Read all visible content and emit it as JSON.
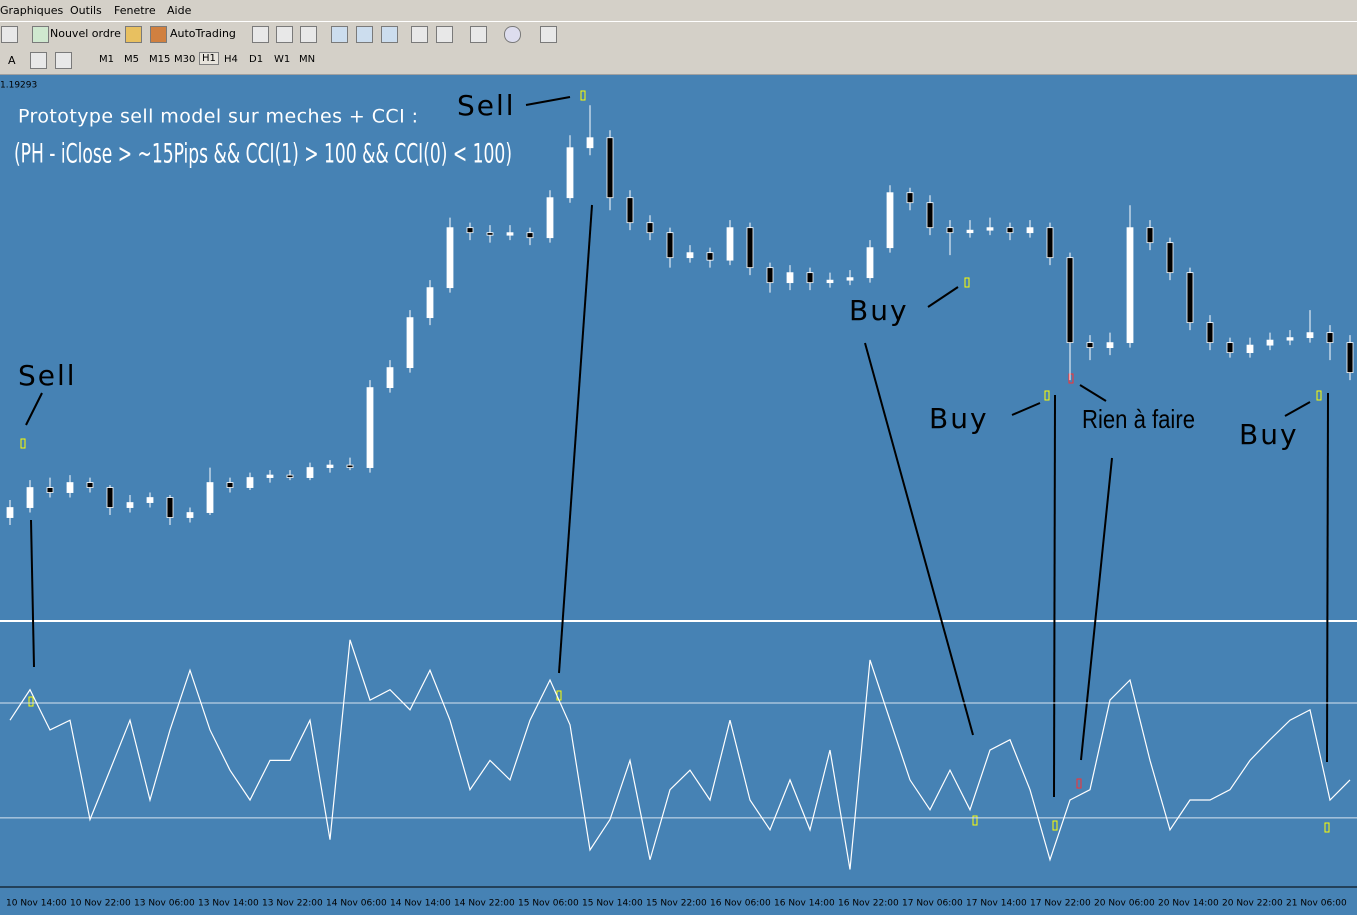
{
  "menu": [
    "Graphiques",
    "Outils",
    "Fenetre",
    "Aide"
  ],
  "toolbar": {
    "new_order": "Nouvel ordre",
    "autotrading": "AutoTrading",
    "timeframes": [
      "M1",
      "M5",
      "M15",
      "M30",
      "H1",
      "H4",
      "D1",
      "W1",
      "MN"
    ],
    "active_timeframe": "H1"
  },
  "price_label": "1.19293",
  "chart_data": {
    "type": "candlestick",
    "title": "Prototype sell model sur meches + CCI :",
    "subtitle": "(PH - iClose > ~15Pips && CCI(1) > 100 && CCI(0) < 100)",
    "annotations": [
      "Sell",
      "Sell",
      "Buy",
      "Buy",
      "Rien à faire",
      "Buy"
    ],
    "ylim": [
      1.1714,
      1.19293
    ],
    "candles": [
      [
        1.1755,
        1.1762,
        1.1752,
        1.1759
      ],
      [
        1.1759,
        1.177,
        1.1757,
        1.1767
      ],
      [
        1.1767,
        1.1771,
        1.1763,
        1.1765
      ],
      [
        1.1765,
        1.1772,
        1.1763,
        1.1769
      ],
      [
        1.1769,
        1.1771,
        1.1765,
        1.1767
      ],
      [
        1.1767,
        1.1768,
        1.1756,
        1.1759
      ],
      [
        1.1759,
        1.1764,
        1.1757,
        1.1761
      ],
      [
        1.1761,
        1.1765,
        1.1759,
        1.1763
      ],
      [
        1.1763,
        1.1764,
        1.1752,
        1.1755
      ],
      [
        1.1755,
        1.1759,
        1.1753,
        1.1757
      ],
      [
        1.1757,
        1.1775,
        1.1756,
        1.1769
      ],
      [
        1.1769,
        1.1771,
        1.1765,
        1.1767
      ],
      [
        1.1767,
        1.1773,
        1.1766,
        1.1771
      ],
      [
        1.1771,
        1.1774,
        1.1769,
        1.1772
      ],
      [
        1.1772,
        1.1774,
        1.177,
        1.1771
      ],
      [
        1.1771,
        1.1777,
        1.177,
        1.1775
      ],
      [
        1.1775,
        1.1778,
        1.1773,
        1.1776
      ],
      [
        1.1776,
        1.1779,
        1.1774,
        1.1775
      ],
      [
        1.1775,
        1.181,
        1.1773,
        1.1807
      ],
      [
        1.1807,
        1.1818,
        1.1805,
        1.1815
      ],
      [
        1.1815,
        1.1838,
        1.1813,
        1.1835
      ],
      [
        1.1835,
        1.185,
        1.1832,
        1.1847
      ],
      [
        1.1847,
        1.1875,
        1.1845,
        1.1871
      ],
      [
        1.1871,
        1.1873,
        1.1866,
        1.1869
      ],
      [
        1.1869,
        1.1872,
        1.1865,
        1.1868
      ],
      [
        1.1868,
        1.1872,
        1.1866,
        1.1869
      ],
      [
        1.1869,
        1.1871,
        1.1864,
        1.1867
      ],
      [
        1.1867,
        1.1886,
        1.1865,
        1.1883
      ],
      [
        1.1883,
        1.1908,
        1.1881,
        1.1903
      ],
      [
        1.1903,
        1.192,
        1.19,
        1.1907
      ],
      [
        1.1907,
        1.191,
        1.1878,
        1.1883
      ],
      [
        1.1883,
        1.1886,
        1.187,
        1.1873
      ],
      [
        1.1873,
        1.1876,
        1.1866,
        1.1869
      ],
      [
        1.1869,
        1.1871,
        1.1855,
        1.1859
      ],
      [
        1.1859,
        1.1864,
        1.1857,
        1.1861
      ],
      [
        1.1861,
        1.1863,
        1.1855,
        1.1858
      ],
      [
        1.1858,
        1.1874,
        1.1856,
        1.1871
      ],
      [
        1.1871,
        1.1873,
        1.1852,
        1.1855
      ],
      [
        1.1855,
        1.1857,
        1.1845,
        1.1849
      ],
      [
        1.1849,
        1.1856,
        1.1846,
        1.1853
      ],
      [
        1.1853,
        1.1855,
        1.1846,
        1.1849
      ],
      [
        1.1849,
        1.1853,
        1.1847,
        1.185
      ],
      [
        1.185,
        1.1854,
        1.1848,
        1.1851
      ],
      [
        1.1851,
        1.1866,
        1.1849,
        1.1863
      ],
      [
        1.1863,
        1.1888,
        1.1861,
        1.1885
      ],
      [
        1.1885,
        1.1887,
        1.1878,
        1.1881
      ],
      [
        1.1881,
        1.1884,
        1.1868,
        1.1871
      ],
      [
        1.1871,
        1.1874,
        1.186,
        1.1869
      ],
      [
        1.1869,
        1.1874,
        1.1867,
        1.187
      ],
      [
        1.187,
        1.1875,
        1.1868,
        1.1871
      ],
      [
        1.1871,
        1.1873,
        1.1866,
        1.1869
      ],
      [
        1.1869,
        1.1874,
        1.1867,
        1.1871
      ],
      [
        1.1871,
        1.1873,
        1.1856,
        1.1859
      ],
      [
        1.1859,
        1.1861,
        1.181,
        1.1825
      ],
      [
        1.1825,
        1.1828,
        1.1818,
        1.1823
      ],
      [
        1.1823,
        1.1829,
        1.182,
        1.1825
      ],
      [
        1.1825,
        1.188,
        1.1823,
        1.1871
      ],
      [
        1.1871,
        1.1874,
        1.1862,
        1.1865
      ],
      [
        1.1865,
        1.1867,
        1.185,
        1.1853
      ],
      [
        1.1853,
        1.1855,
        1.183,
        1.1833
      ],
      [
        1.1833,
        1.1836,
        1.1822,
        1.1825
      ],
      [
        1.1825,
        1.1827,
        1.1819,
        1.1821
      ],
      [
        1.1821,
        1.1827,
        1.1819,
        1.1824
      ],
      [
        1.1824,
        1.1829,
        1.1822,
        1.1826
      ],
      [
        1.1826,
        1.183,
        1.1824,
        1.1827
      ],
      [
        1.1827,
        1.1838,
        1.1825,
        1.1829
      ],
      [
        1.1829,
        1.1832,
        1.1818,
        1.1825
      ],
      [
        1.1825,
        1.1828,
        1.181,
        1.1813
      ]
    ],
    "cci": {
      "ylim": [
        -217,
        241
      ],
      "levels": [
        100,
        -100
      ],
      "color": "#ffffff",
      "values": [
        70,
        123,
        53,
        70,
        -103,
        -17,
        70,
        -69,
        53,
        157,
        53,
        -17,
        -69,
        0,
        0,
        70,
        -138,
        210,
        105,
        123,
        88,
        157,
        70,
        -51,
        0,
        -34,
        70,
        140,
        62,
        -156,
        -103,
        0,
        -173,
        -51,
        -17,
        -69,
        70,
        -69,
        -121,
        -34,
        -121,
        18,
        -190,
        175,
        70,
        -34,
        -86,
        -17,
        -86,
        18,
        36,
        -51,
        -173,
        -69,
        -51,
        105,
        140,
        0,
        -121,
        -69,
        -69,
        -51,
        0,
        36,
        70,
        88,
        -69,
        -34
      ]
    },
    "time_labels": [
      "10 Nov 14:00",
      "10 Nov 22:00",
      "13 Nov 06:00",
      "13 Nov 14:00",
      "13 Nov 22:00",
      "14 Nov 06:00",
      "14 Nov 14:00",
      "14 Nov 22:00",
      "15 Nov 06:00",
      "15 Nov 14:00",
      "15 Nov 22:00",
      "16 Nov 06:00",
      "16 Nov 14:00",
      "16 Nov 22:00",
      "17 Nov 06:00",
      "17 Nov 14:00",
      "17 Nov 22:00",
      "20 Nov 06:00",
      "20 Nov 14:00",
      "20 Nov 22:00",
      "21 Nov 06:00"
    ]
  }
}
